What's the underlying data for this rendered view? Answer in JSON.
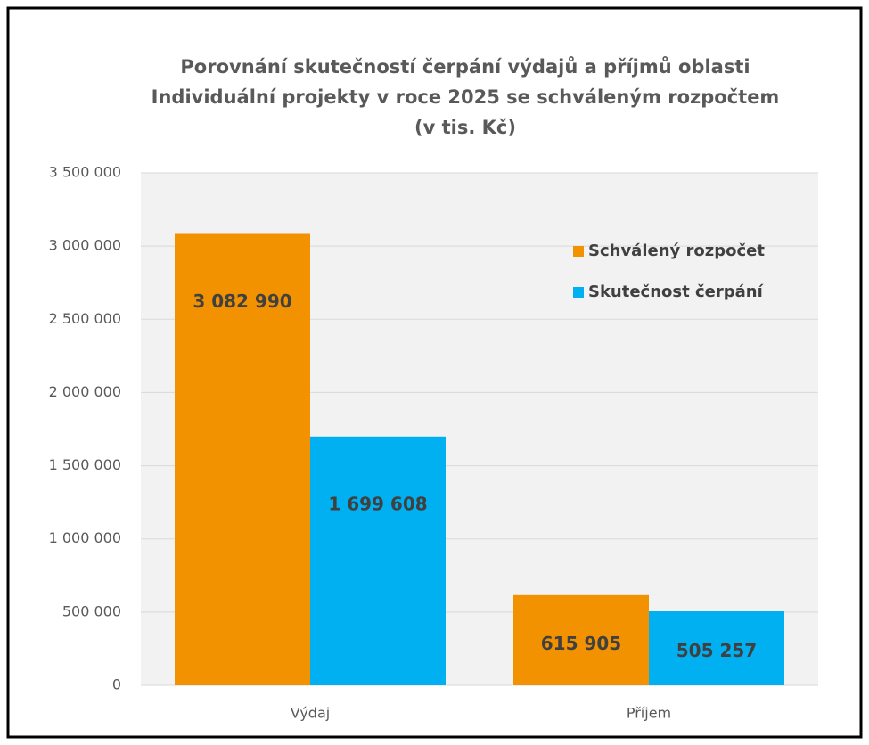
{
  "chart_data": {
    "type": "bar",
    "title": [
      "Porovnání skutečností čerpání výdajů a příjmů oblasti",
      "Individuální projekty v roce 2025 se schváleným rozpočtem",
      "(v tis. Kč)"
    ],
    "categories": [
      "Výdaj",
      "Příjem"
    ],
    "series": [
      {
        "name": "Schválený rozpočet",
        "color": "#f39200",
        "values": [
          3082990,
          615905
        ],
        "value_labels": [
          "3 082 990",
          "615 905"
        ]
      },
      {
        "name": "Skutečnost čerpání",
        "color": "#00b0f0",
        "values": [
          1699608,
          505257
        ],
        "value_labels": [
          "1 699 608",
          "505 257"
        ]
      }
    ],
    "ylim": [
      0,
      3500000
    ],
    "yticks": [
      0,
      {
        "value": 500000,
        "label": "500 000"
      },
      {
        "value": 1000000,
        "label": "1 000 000"
      },
      {
        "value": 1500000,
        "label": "1 500 000"
      },
      {
        "value": 2000000,
        "label": "2 000 000"
      },
      {
        "value": 2500000,
        "label": "2 500 000"
      },
      {
        "value": 3000000,
        "label": "3 000 000"
      },
      {
        "value": 3500000,
        "label": "3 500 000"
      }
    ],
    "grid": true,
    "legend": "upper right"
  }
}
